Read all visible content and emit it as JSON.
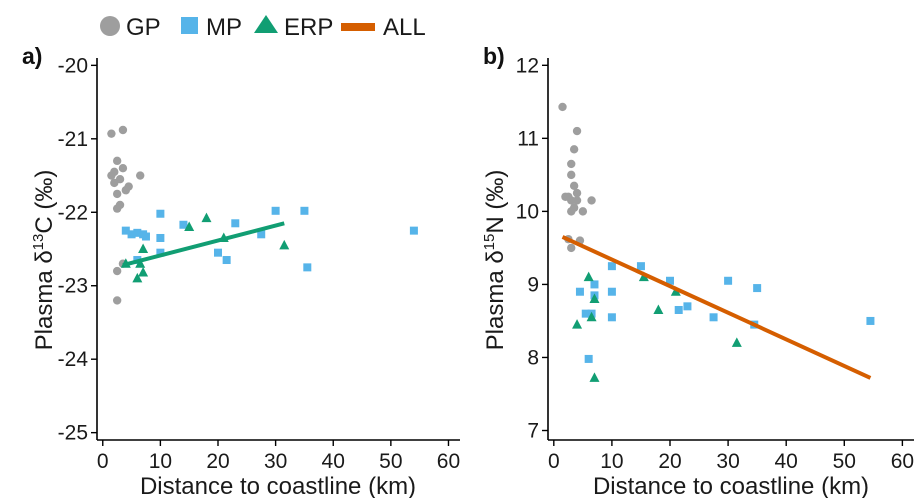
{
  "legend": [
    {
      "key": "GP",
      "label": "GP",
      "shape": "circle",
      "color": "#9e9e9e"
    },
    {
      "key": "MP",
      "label": "MP",
      "shape": "square",
      "color": "#56b4e9"
    },
    {
      "key": "ERP",
      "label": "ERP",
      "shape": "triangle",
      "color": "#119e73"
    },
    {
      "key": "ALL",
      "label": "ALL",
      "shape": "line",
      "color": "#d55e00"
    }
  ],
  "chart_data": [
    {
      "type": "scatter",
      "panel_label": "a)",
      "xlabel": "Distance to coastline (km)",
      "ylabel": {
        "prefix": "Plasma δ",
        "sup": "13",
        "suffix": "C (‰)"
      },
      "xlim": [
        -1,
        62
      ],
      "ylim": [
        -25.1,
        -19.9
      ],
      "xticks": [
        0,
        10,
        20,
        30,
        40,
        50,
        60
      ],
      "yticks": [
        -25,
        -24,
        -23,
        -22,
        -21,
        -20
      ],
      "grid": false,
      "series": [
        {
          "group": "GP",
          "shape": "circle",
          "color": "#9e9e9e",
          "points": [
            [
              1.5,
              -20.93
            ],
            [
              3.5,
              -20.88
            ],
            [
              2.5,
              -21.3
            ],
            [
              2,
              -21.45
            ],
            [
              3,
              -21.55
            ],
            [
              2,
              -21.6
            ],
            [
              3.5,
              -21.4
            ],
            [
              4,
              -21.7
            ],
            [
              2.5,
              -21.75
            ],
            [
              3,
              -21.9
            ],
            [
              4.5,
              -21.65
            ],
            [
              6.5,
              -21.5
            ],
            [
              2.5,
              -21.95
            ],
            [
              2.5,
              -22.8
            ],
            [
              3.5,
              -22.7
            ],
            [
              2.5,
              -23.2
            ],
            [
              1.5,
              -21.5
            ]
          ]
        },
        {
          "group": "MP",
          "shape": "square",
          "color": "#56b4e9",
          "points": [
            [
              4,
              -22.25
            ],
            [
              5,
              -22.3
            ],
            [
              6,
              -22.28
            ],
            [
              7,
              -22.3
            ],
            [
              7.5,
              -22.33
            ],
            [
              10,
              -22.02
            ],
            [
              10,
              -22.35
            ],
            [
              10,
              -22.55
            ],
            [
              14,
              -22.17
            ],
            [
              20,
              -22.55
            ],
            [
              21.5,
              -22.65
            ],
            [
              23,
              -22.15
            ],
            [
              27.5,
              -22.3
            ],
            [
              30,
              -21.98
            ],
            [
              35,
              -21.98
            ],
            [
              35.5,
              -22.75
            ],
            [
              54,
              -22.25
            ],
            [
              6,
              -22.65
            ]
          ]
        },
        {
          "group": "ERP",
          "shape": "triangle",
          "color": "#119e73",
          "points": [
            [
              4,
              -22.7
            ],
            [
              6,
              -22.9
            ],
            [
              6.5,
              -22.7
            ],
            [
              7,
              -22.82
            ],
            [
              7,
              -22.5
            ],
            [
              15,
              -22.2
            ],
            [
              18,
              -22.08
            ],
            [
              21,
              -22.35
            ],
            [
              31.5,
              -22.45
            ]
          ]
        }
      ],
      "fit": {
        "group": "ERP",
        "color": "#119e73",
        "x": [
          3.5,
          31.5
        ],
        "y": [
          -22.72,
          -22.15
        ]
      }
    },
    {
      "type": "scatter",
      "panel_label": "b)",
      "xlabel": "Distance to coastline (km)",
      "ylabel": {
        "prefix": "Plasma δ",
        "sup": "15",
        "suffix": "N (‰)"
      },
      "xlim": [
        -1,
        62
      ],
      "ylim": [
        6.87,
        12.1
      ],
      "xticks": [
        0,
        10,
        20,
        30,
        40,
        50,
        60
      ],
      "yticks": [
        7,
        8,
        9,
        10,
        11,
        12
      ],
      "grid": false,
      "series": [
        {
          "group": "GP",
          "shape": "circle",
          "color": "#9e9e9e",
          "points": [
            [
              1.5,
              11.43
            ],
            [
              4,
              11.1
            ],
            [
              3.5,
              10.85
            ],
            [
              3,
              10.65
            ],
            [
              3,
              10.5
            ],
            [
              3.5,
              10.35
            ],
            [
              2,
              10.2
            ],
            [
              2.5,
              10.2
            ],
            [
              3,
              10.15
            ],
            [
              4,
              10.15
            ],
            [
              4,
              10.25
            ],
            [
              3.5,
              10.05
            ],
            [
              3,
              10.0
            ],
            [
              5,
              10.0
            ],
            [
              6.5,
              10.15
            ],
            [
              2.5,
              9.62
            ],
            [
              3,
              9.5
            ],
            [
              4.5,
              9.6
            ]
          ]
        },
        {
          "group": "MP",
          "shape": "square",
          "color": "#56b4e9",
          "points": [
            [
              4.5,
              8.9
            ],
            [
              5.5,
              8.6
            ],
            [
              6,
              7.98
            ],
            [
              7,
              9.0
            ],
            [
              7,
              8.85
            ],
            [
              10,
              9.25
            ],
            [
              10,
              8.9
            ],
            [
              10,
              8.55
            ],
            [
              15,
              9.25
            ],
            [
              20,
              9.05
            ],
            [
              21.5,
              8.65
            ],
            [
              23,
              8.7
            ],
            [
              27.5,
              8.55
            ],
            [
              30,
              9.05
            ],
            [
              34.5,
              8.45
            ],
            [
              35,
              8.95
            ],
            [
              54.5,
              8.5
            ],
            [
              6.5,
              8.6
            ]
          ]
        },
        {
          "group": "ERP",
          "shape": "triangle",
          "color": "#119e73",
          "points": [
            [
              4,
              8.45
            ],
            [
              6,
              9.1
            ],
            [
              6.5,
              8.55
            ],
            [
              7,
              8.8
            ],
            [
              7,
              7.72
            ],
            [
              15.5,
              9.1
            ],
            [
              18,
              8.65
            ],
            [
              21,
              8.9
            ],
            [
              31.5,
              8.2
            ]
          ]
        }
      ],
      "fit": {
        "group": "ALL",
        "color": "#d55e00",
        "x": [
          1.5,
          54.5
        ],
        "y": [
          9.65,
          7.72
        ]
      }
    }
  ]
}
